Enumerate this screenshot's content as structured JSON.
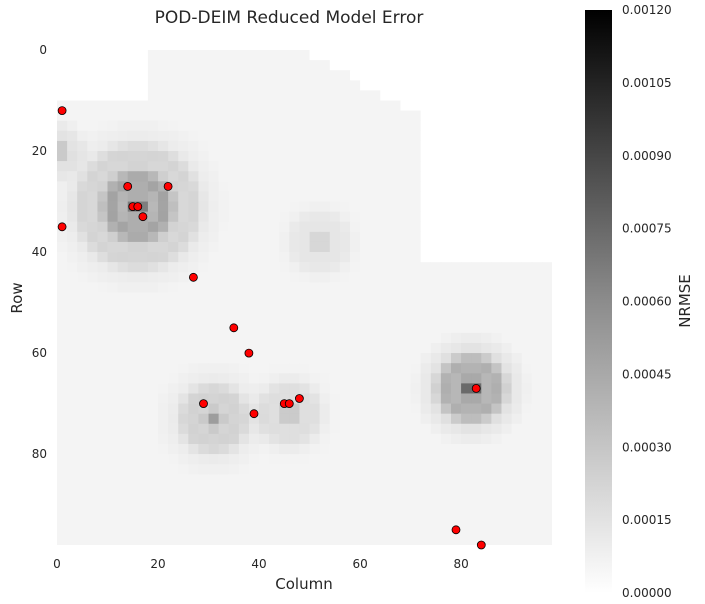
{
  "chart_data": {
    "type": "heatmap",
    "title": "POD-DEIM Reduced Model Error",
    "xlabel": "Column",
    "ylabel": "Row",
    "grid_size": [
      98,
      98
    ],
    "xlim": [
      0,
      98
    ],
    "ylim": [
      98,
      0
    ],
    "x_ticks": [
      0,
      20,
      40,
      60,
      80
    ],
    "x_tick_labels": [
      "0",
      "20",
      "40",
      "60",
      "80"
    ],
    "y_ticks": [
      0,
      20,
      40,
      60,
      80
    ],
    "y_tick_labels": [
      "0",
      "20",
      "40",
      "60",
      "80"
    ],
    "colormap": "grey-white-to-black",
    "colorbar": {
      "label": "NRMSE",
      "range": [
        0.0,
        0.0012
      ],
      "ticks": [
        0.0,
        0.00015,
        0.0003,
        0.00045,
        0.0006,
        0.00075,
        0.0009,
        0.00105,
        0.0012
      ],
      "tick_labels": [
        "0.00000",
        "0.00015",
        "0.00030",
        "0.00045",
        "0.00060",
        "0.00075",
        "0.00090",
        "0.00105",
        "0.00120"
      ]
    },
    "error_hotspots": [
      {
        "col": 16,
        "row": 31,
        "peak": 0.00075,
        "radius": 18
      },
      {
        "col": 31,
        "row": 73,
        "peak": 0.00045,
        "radius": 12
      },
      {
        "col": 46,
        "row": 72,
        "peak": 0.00035,
        "radius": 10
      },
      {
        "col": 52,
        "row": 38,
        "peak": 0.00025,
        "radius": 9
      },
      {
        "col": 82,
        "row": 67,
        "peak": 0.0009,
        "radius": 12
      },
      {
        "col": 0,
        "row": 20,
        "peak": 0.0004,
        "radius": 7
      }
    ],
    "deim_points": {
      "marker_color": "#ff0000",
      "points": [
        {
          "col": 1,
          "row": 12
        },
        {
          "col": 1,
          "row": 35
        },
        {
          "col": 14,
          "row": 27
        },
        {
          "col": 22,
          "row": 27
        },
        {
          "col": 15,
          "row": 31
        },
        {
          "col": 16,
          "row": 31
        },
        {
          "col": 17,
          "row": 33
        },
        {
          "col": 27,
          "row": 45
        },
        {
          "col": 35,
          "row": 55
        },
        {
          "col": 38,
          "row": 60
        },
        {
          "col": 29,
          "row": 70
        },
        {
          "col": 39,
          "row": 72
        },
        {
          "col": 45,
          "row": 70
        },
        {
          "col": 46,
          "row": 70
        },
        {
          "col": 48,
          "row": 69
        },
        {
          "col": 83,
          "row": 67
        },
        {
          "col": 79,
          "row": 95
        },
        {
          "col": 84,
          "row": 98
        }
      ]
    }
  }
}
